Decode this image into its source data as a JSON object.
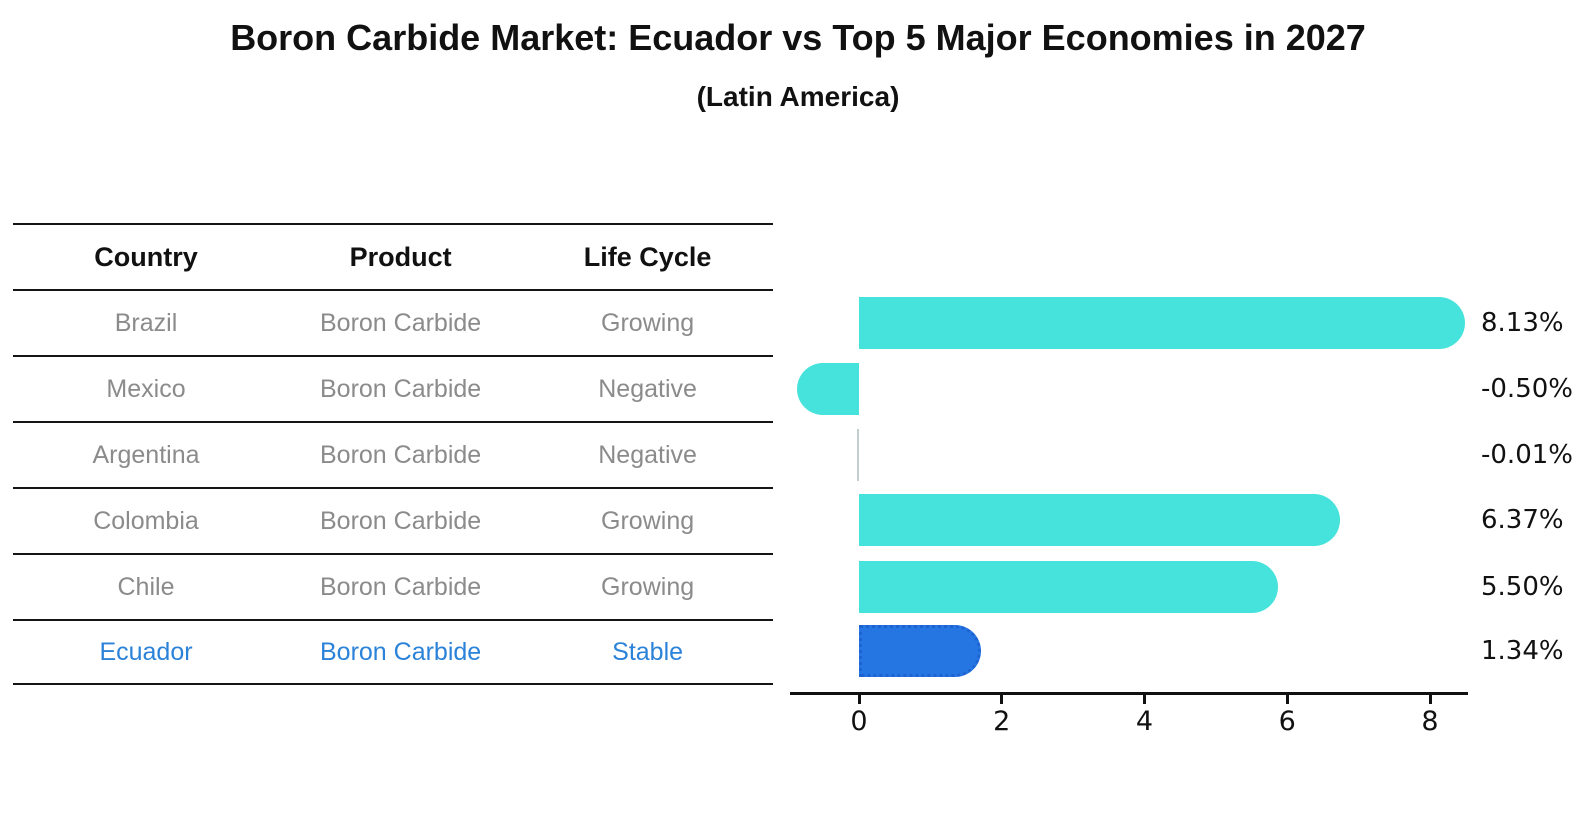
{
  "title": "Boron Carbide Market: Ecuador vs Top 5 Major Economies in 2027",
  "subtitle": "(Latin America)",
  "table": {
    "headers": [
      "Country",
      "Product",
      "Life Cycle"
    ],
    "rows": [
      {
        "country": "Brazil",
        "product": "Boron Carbide",
        "life_cycle": "Growing",
        "highlight": false
      },
      {
        "country": "Mexico",
        "product": "Boron Carbide",
        "life_cycle": "Negative",
        "highlight": false
      },
      {
        "country": "Argentina",
        "product": "Boron Carbide",
        "life_cycle": "Negative",
        "highlight": false
      },
      {
        "country": "Colombia",
        "product": "Boron Carbide",
        "life_cycle": "Growing",
        "highlight": false
      },
      {
        "country": "Chile",
        "product": "Boron Carbide",
        "life_cycle": "Growing",
        "highlight": false
      },
      {
        "country": "Ecuador",
        "product": "Boron Carbide",
        "life_cycle": "Stable",
        "highlight": true
      }
    ]
  },
  "chart_data": {
    "type": "bar",
    "orientation": "horizontal",
    "title": "Boron Carbide Market: Ecuador vs Top 5 Major Economies in 2027",
    "subtitle": "(Latin America)",
    "categories": [
      "Brazil",
      "Mexico",
      "Argentina",
      "Colombia",
      "Chile",
      "Ecuador"
    ],
    "values": [
      8.13,
      -0.5,
      -0.01,
      6.37,
      5.5,
      1.34
    ],
    "value_labels": [
      "8.13%",
      "-0.50%",
      "-0.01%",
      "6.37%",
      "5.50%",
      "1.34%"
    ],
    "unit": "percent",
    "xticks": [
      0,
      2,
      4,
      6,
      8
    ],
    "xlim": [
      -0.97,
      8.53
    ],
    "grid": false,
    "legend": false,
    "highlight_index": 5,
    "bar_color": "#45e3dc",
    "highlight_bar_color": "#2576e3",
    "highlight_text_color": "#2b82d9",
    "text_color": "#8b8b8b",
    "axis_color": "#111111"
  }
}
